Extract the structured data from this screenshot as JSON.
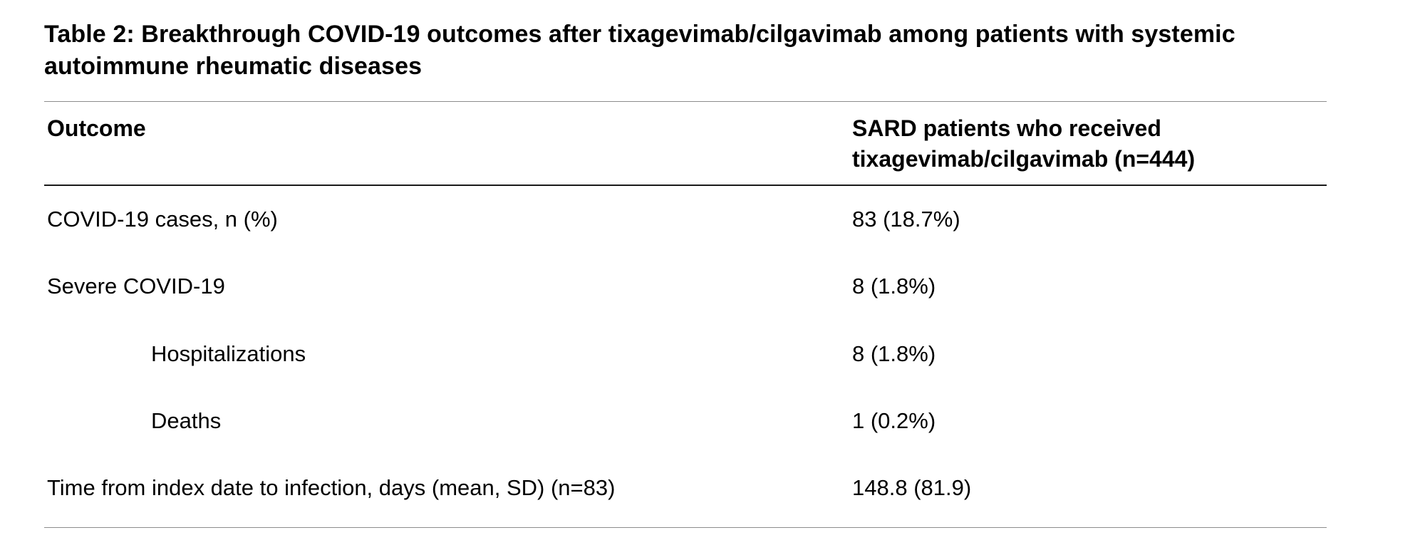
{
  "colors": {
    "background": "#ffffff",
    "text": "#000000",
    "rule_light": "#8c8c8c",
    "rule_dark": "#1a1a1a"
  },
  "table": {
    "title": "Table 2: Breakthrough COVID-19 outcomes after tixagevimab/cilgavimab among patients with systemic autoimmune rheumatic diseases",
    "columns": [
      "Outcome",
      "SARD patients who received tixagevimab/cilgavimab (n=444)"
    ],
    "rows": [
      {
        "label": "COVID-19 cases, n (%)",
        "value": "83 (18.7%)",
        "indent": false
      },
      {
        "label": "Severe COVID-19",
        "value": "8 (1.8%)",
        "indent": false
      },
      {
        "label": "Hospitalizations",
        "value": "8 (1.8%)",
        "indent": true
      },
      {
        "label": "Deaths",
        "value": "1 (0.2%)",
        "indent": true
      },
      {
        "label": "Time from index date to infection, days (mean, SD) (n=83)",
        "value": "148.8 (81.9)",
        "indent": false
      }
    ]
  },
  "chart_data": {
    "type": "table",
    "title": "Table 2: Breakthrough COVID-19 outcomes after tixagevimab/cilgavimab among patients with systemic autoimmune rheumatic diseases",
    "columns": [
      "Outcome",
      "SARD patients who received tixagevimab/cilgavimab (n=444)"
    ],
    "rows": [
      [
        "COVID-19 cases, n (%)",
        "83 (18.7%)"
      ],
      [
        "Severe COVID-19",
        "8 (1.8%)"
      ],
      [
        "Hospitalizations",
        "8 (1.8%)"
      ],
      [
        "Deaths",
        "1 (0.2%)"
      ],
      [
        "Time from index date to infection, days (mean, SD) (n=83)",
        "148.8 (81.9)"
      ]
    ]
  }
}
